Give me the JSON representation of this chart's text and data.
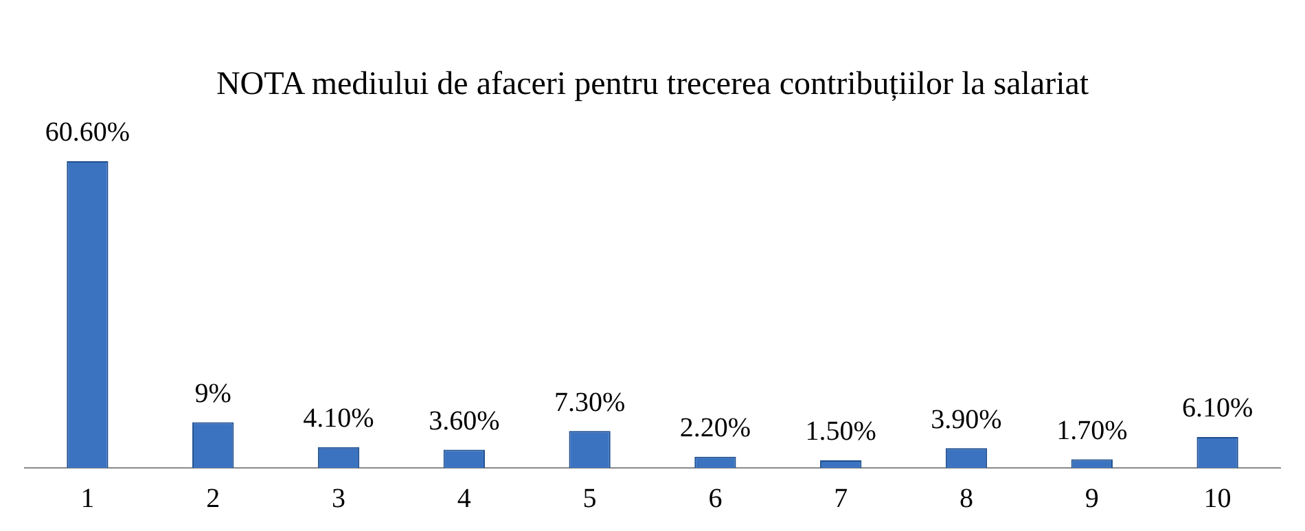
{
  "chart_data": {
    "type": "bar",
    "title": "NOTA mediului de afaceri pentru trecerea contribuțiilor la salariat",
    "categories": [
      "1",
      "2",
      "3",
      "4",
      "5",
      "6",
      "7",
      "8",
      "9",
      "10"
    ],
    "values": [
      60.6,
      9,
      4.1,
      3.6,
      7.3,
      2.2,
      1.5,
      3.9,
      1.7,
      6.1
    ],
    "value_labels": [
      "60.60%",
      "9%",
      "4.10%",
      "3.60%",
      "7.30%",
      "2.20%",
      "1.50%",
      "3.90%",
      "1.70%",
      "6.10%"
    ],
    "color": "#3b73c0",
    "tick_labels": "x",
    "grid": false,
    "legend": false
  }
}
